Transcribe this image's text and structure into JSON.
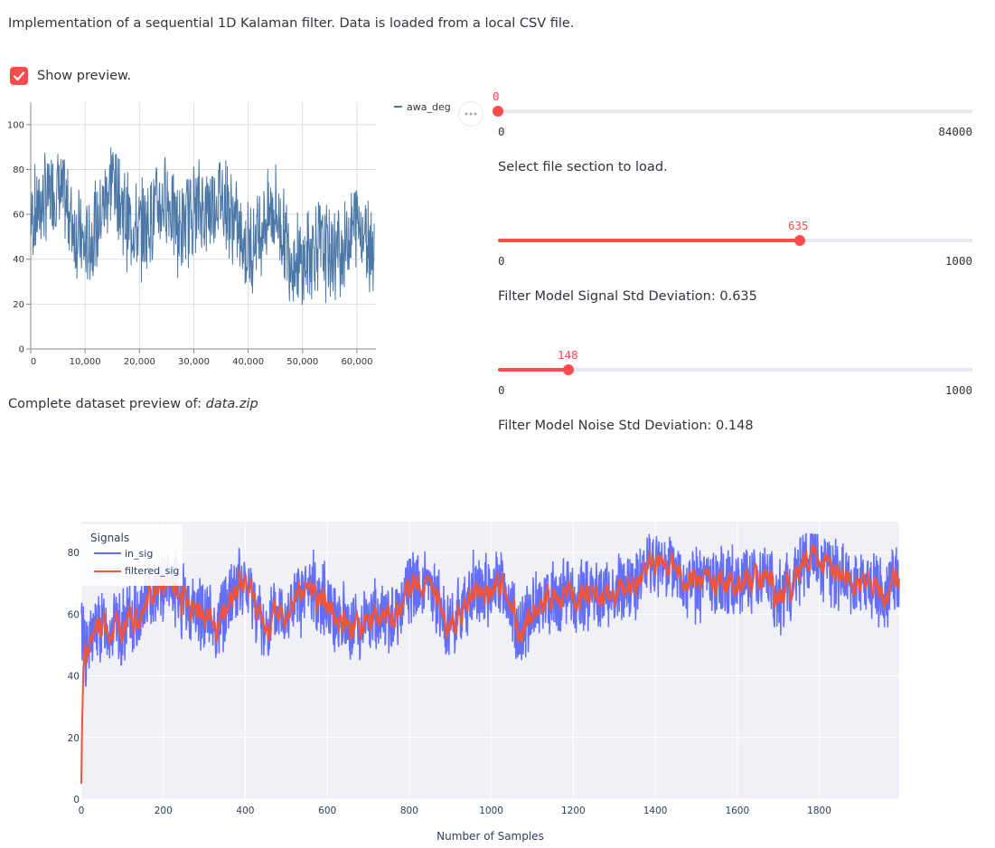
{
  "description": "Implementation of a sequential 1D Kalaman filter. Data is loaded from a local CSV file.",
  "show_preview": {
    "label": "Show preview.",
    "checked": true
  },
  "preview_caption": {
    "prefix": "Complete dataset preview of:",
    "file": "data.zip"
  },
  "menu_icon": "ellipsis-icon",
  "sliders": [
    {
      "value": "0",
      "min": "0",
      "max": "84000",
      "caption": "Select file section to load.",
      "fraction": 0.0
    },
    {
      "value": "635",
      "min": "0",
      "max": "1000",
      "caption": "Filter Model Signal Std Deviation: 0.635",
      "fraction": 0.635
    },
    {
      "value": "148",
      "min": "0",
      "max": "1000",
      "caption": "Filter Model Noise Std Deviation: 0.148",
      "fraction": 0.148
    }
  ],
  "colors": {
    "accent": "#ff4b4b",
    "preview_line": "#4c78a8",
    "in_sig": "#636efa",
    "filtered_sig": "#ef553b",
    "plot_bg": "#eff1f6"
  },
  "chart_data": [
    {
      "type": "line",
      "series": [
        {
          "name": "awa_deg",
          "color": "#4c78a8"
        }
      ],
      "x_ticks": [
        "0",
        "10,000",
        "20,000",
        "30,000",
        "40,000",
        "50,000",
        "60,000"
      ],
      "y_ticks": [
        "0",
        "20",
        "40",
        "60",
        "80",
        "100"
      ],
      "xlim": [
        0,
        63500
      ],
      "ylim": [
        0,
        110
      ],
      "envelope_centers": [
        [
          0,
          58
        ],
        [
          2500,
          66
        ],
        [
          5000,
          72
        ],
        [
          7500,
          58
        ],
        [
          10000,
          44
        ],
        [
          12500,
          56
        ],
        [
          15000,
          78
        ],
        [
          17500,
          58
        ],
        [
          20000,
          52
        ],
        [
          22500,
          60
        ],
        [
          25000,
          68
        ],
        [
          27500,
          52
        ],
        [
          30000,
          64
        ],
        [
          32500,
          62
        ],
        [
          35000,
          70
        ],
        [
          37500,
          56
        ],
        [
          40000,
          44
        ],
        [
          42500,
          56
        ],
        [
          45000,
          62
        ],
        [
          47500,
          44
        ],
        [
          50000,
          36
        ],
        [
          52500,
          48
        ],
        [
          55000,
          42
        ],
        [
          57500,
          44
        ],
        [
          60000,
          58
        ],
        [
          63000,
          46
        ]
      ]
    },
    {
      "type": "line",
      "legend_title": "Signals",
      "xlabel": "Number of Samples",
      "series": [
        {
          "name": "in_sig",
          "color": "#636efa"
        },
        {
          "name": "filtered_sig",
          "color": "#ef553b"
        }
      ],
      "x_ticks": [
        "0",
        "200",
        "400",
        "600",
        "800",
        "1000",
        "1200",
        "1400",
        "1600",
        "1800"
      ],
      "y_ticks": [
        "0",
        "20",
        "40",
        "60",
        "80"
      ],
      "xlim": [
        0,
        1995
      ],
      "ylim": [
        0,
        90
      ],
      "trend_points": [
        [
          0,
          5
        ],
        [
          10,
          45
        ],
        [
          30,
          55
        ],
        [
          60,
          56
        ],
        [
          100,
          55
        ],
        [
          150,
          62
        ],
        [
          180,
          70
        ],
        [
          230,
          68
        ],
        [
          260,
          62
        ],
        [
          300,
          60
        ],
        [
          330,
          56
        ],
        [
          380,
          70
        ],
        [
          420,
          66
        ],
        [
          440,
          55
        ],
        [
          480,
          60
        ],
        [
          520,
          63
        ],
        [
          560,
          68
        ],
        [
          600,
          64
        ],
        [
          620,
          60
        ],
        [
          660,
          56
        ],
        [
          700,
          58
        ],
        [
          740,
          60
        ],
        [
          760,
          56
        ],
        [
          800,
          70
        ],
        [
          840,
          68
        ],
        [
          870,
          64
        ],
        [
          890,
          56
        ],
        [
          920,
          60
        ],
        [
          960,
          68
        ],
        [
          1000,
          66
        ],
        [
          1020,
          70
        ],
        [
          1040,
          66
        ],
        [
          1060,
          56
        ],
        [
          1080,
          54
        ],
        [
          1100,
          62
        ],
        [
          1150,
          66
        ],
        [
          1200,
          66
        ],
        [
          1250,
          66
        ],
        [
          1300,
          66
        ],
        [
          1360,
          70
        ],
        [
          1400,
          76
        ],
        [
          1440,
          75
        ],
        [
          1480,
          70
        ],
        [
          1520,
          70
        ],
        [
          1560,
          72
        ],
        [
          1600,
          70
        ],
        [
          1640,
          72
        ],
        [
          1680,
          70
        ],
        [
          1700,
          66
        ],
        [
          1740,
          70
        ],
        [
          1780,
          82
        ],
        [
          1820,
          72
        ],
        [
          1860,
          72
        ],
        [
          1900,
          70
        ],
        [
          1940,
          68
        ],
        [
          1960,
          66
        ],
        [
          1995,
          72
        ]
      ]
    }
  ]
}
